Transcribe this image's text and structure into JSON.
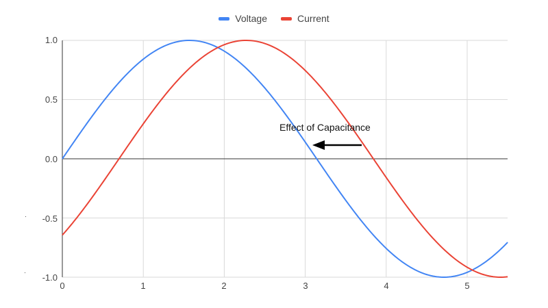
{
  "chart_data": {
    "type": "line",
    "title": "",
    "xlabel": "",
    "ylabel": "",
    "xlim": [
      0,
      5.5
    ],
    "ylim": [
      -1.0,
      1.0
    ],
    "grid": true,
    "legend_position": "top",
    "x_ticks": [
      "0",
      "1",
      "2",
      "3",
      "4",
      "5"
    ],
    "y_ticks": [
      "1.0",
      "0.5",
      "0.0",
      "-0.5",
      "-1.0"
    ],
    "series": [
      {
        "name": "Voltage",
        "color": "#4285f4",
        "formula": "sin(x)",
        "x": [
          0,
          0.5,
          1,
          1.5,
          2,
          2.5,
          3,
          3.5,
          4,
          4.5,
          5,
          5.5
        ],
        "values": [
          0.0,
          0.48,
          0.84,
          1.0,
          0.91,
          0.6,
          0.14,
          -0.35,
          -0.76,
          -0.98,
          -0.96,
          -0.71
        ]
      },
      {
        "name": "Current",
        "color": "#ea4335",
        "formula": "sin(x - 0.7)",
        "x": [
          0,
          0.5,
          1,
          1.5,
          2,
          2.5,
          3,
          3.5,
          4,
          4.5,
          5,
          5.5
        ],
        "values": [
          -0.64,
          -0.2,
          0.3,
          0.72,
          0.96,
          0.97,
          0.75,
          0.33,
          -0.16,
          -0.61,
          -0.92,
          -1.0
        ]
      }
    ],
    "annotations": [
      {
        "text": "Effect of Capacitance",
        "arrow": "left-pointing arrow from Current curve toward Voltage curve near y≈0.2"
      }
    ]
  },
  "legend": {
    "items": [
      {
        "label": "Voltage",
        "color": "#4285f4"
      },
      {
        "label": "Current",
        "color": "#ea4335"
      }
    ]
  },
  "annotation": {
    "text": "Effect of Capacitance"
  },
  "axes": {
    "y_labels": [
      "1.0",
      "0.5",
      "0.0",
      "-0.5",
      "-1.0"
    ],
    "x_labels": [
      "0",
      "1",
      "2",
      "3",
      "4",
      "5"
    ]
  }
}
